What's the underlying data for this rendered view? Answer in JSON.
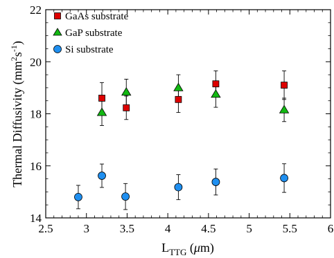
{
  "chart_data": {
    "type": "scatter",
    "xlabel": {
      "main": "L",
      "sub": "TTG",
      "unit_open": " (",
      "unit_mu": "μ",
      "unit_rest": "m)"
    },
    "ylabel": {
      "main": "Thermal Diffusivity (mm",
      "sup1": "2",
      "mid": "s",
      "sup2": "-1",
      "end": ")"
    },
    "xlim": [
      2.5,
      6
    ],
    "ylim": [
      14,
      22
    ],
    "x_ticks": [
      2.5,
      3,
      3.5,
      4,
      4.5,
      5,
      5.5,
      6
    ],
    "x_tick_labels": [
      "2.5",
      "3",
      "3.5",
      "4",
      "4.5",
      "5",
      "5.5",
      "6"
    ],
    "y_ticks": [
      14,
      16,
      18,
      20,
      22
    ],
    "y_tick_labels": [
      "14",
      "16",
      "18",
      "20",
      "22"
    ],
    "grid": false,
    "legend_position": "top-left",
    "series": [
      {
        "name": "GaAs substrate",
        "marker": "square",
        "color": "#dd0000",
        "x": [
          3.19,
          3.49,
          4.13,
          4.59,
          5.43
        ],
        "y": [
          18.6,
          18.23,
          18.55,
          19.15,
          19.1
        ],
        "err": [
          0.6,
          0.45,
          0.5,
          0.5,
          0.55
        ]
      },
      {
        "name": "GaP substrate",
        "marker": "triangle",
        "color": "#12b812",
        "x": [
          3.19,
          3.49,
          4.13,
          4.59,
          5.43
        ],
        "y": [
          18.05,
          18.83,
          19.0,
          18.75,
          18.15
        ],
        "err": [
          0.5,
          0.5,
          0.5,
          0.5,
          0.45
        ]
      },
      {
        "name": "Si substrate",
        "marker": "circle",
        "color": "#1f8ff0",
        "x": [
          2.9,
          3.19,
          3.48,
          4.13,
          4.59,
          5.43
        ],
        "y": [
          14.8,
          15.62,
          14.82,
          15.18,
          15.38,
          15.53
        ],
        "err": [
          0.45,
          0.45,
          0.5,
          0.48,
          0.5,
          0.55
        ]
      }
    ]
  }
}
